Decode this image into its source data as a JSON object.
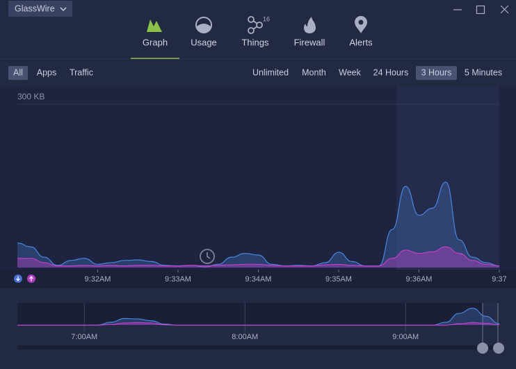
{
  "app_menu": "GlassWire",
  "nav": [
    {
      "label": "Graph",
      "selected": true
    },
    {
      "label": "Usage"
    },
    {
      "label": "Things",
      "badge": "16"
    },
    {
      "label": "Firewall"
    },
    {
      "label": "Alerts"
    }
  ],
  "filters": [
    {
      "label": "All",
      "selected": true
    },
    {
      "label": "Apps"
    },
    {
      "label": "Traffic"
    }
  ],
  "ranges": [
    {
      "label": "Unlimited"
    },
    {
      "label": "Month"
    },
    {
      "label": "Week"
    },
    {
      "label": "24 Hours"
    },
    {
      "label": "3 Hours",
      "selected": true
    },
    {
      "label": "5 Minutes"
    }
  ],
  "chart_data": [
    {
      "type": "area",
      "categories": [
        null,
        null,
        null,
        null,
        null,
        null,
        "9:32AM",
        null,
        null,
        null,
        null,
        null,
        "9:33AM",
        null,
        null,
        null,
        null,
        null,
        "9:34AM",
        null,
        null,
        null,
        null,
        null,
        "9:35AM",
        null,
        null,
        null,
        null,
        null,
        "9:36AM",
        null,
        null,
        null,
        null,
        null,
        "9:37"
      ],
      "series": [
        {
          "name": "download",
          "color": "#4a86e0",
          "values": [
            45,
            38,
            19,
            4,
            13,
            17,
            6,
            9,
            13,
            14,
            11,
            4,
            3,
            4,
            1,
            6,
            19,
            26,
            23,
            6,
            3,
            4,
            3,
            9,
            28,
            11,
            3,
            3,
            70,
            149,
            96,
            109,
            157,
            51,
            19,
            9,
            3
          ]
        },
        {
          "name": "upload",
          "color": "#c03fc8",
          "values": [
            17,
            17,
            9,
            3,
            3,
            4,
            3,
            4,
            3,
            4,
            4,
            3,
            3,
            4,
            3,
            4,
            5,
            6,
            6,
            4,
            3,
            3,
            3,
            5,
            6,
            4,
            3,
            3,
            17,
            32,
            26,
            29,
            38,
            26,
            13,
            6,
            3
          ]
        }
      ],
      "ylim": [
        0,
        300
      ],
      "yticks": [
        {
          "value": 300,
          "label": "300 KB"
        }
      ],
      "grid": true
    },
    {
      "type": "area",
      "categories": [
        null,
        null,
        null,
        null,
        null,
        "7:00AM",
        null,
        null,
        null,
        null,
        null,
        null,
        null,
        null,
        null,
        null,
        null,
        "8:00AM",
        null,
        null,
        null,
        null,
        null,
        null,
        null,
        null,
        null,
        null,
        null,
        "9:00AM",
        null,
        null,
        null,
        null,
        null,
        null,
        null
      ],
      "series": [
        {
          "name": "download",
          "color": "#4a86e0",
          "values": [
            0,
            0,
            0,
            0,
            0,
            0,
            3,
            40,
            90,
            85,
            60,
            15,
            0,
            0,
            0,
            0,
            0,
            0,
            0,
            0,
            0,
            0,
            0,
            0,
            0,
            0,
            0,
            0,
            0,
            0,
            0,
            0,
            40,
            160,
            230,
            120,
            20
          ]
        },
        {
          "name": "upload",
          "color": "#c03fc8",
          "values": [
            0,
            0,
            0,
            0,
            0,
            0,
            0,
            10,
            30,
            35,
            30,
            5,
            0,
            0,
            0,
            0,
            0,
            0,
            0,
            0,
            0,
            0,
            0,
            0,
            0,
            0,
            0,
            0,
            0,
            0,
            0,
            0,
            0,
            20,
            35,
            25,
            5
          ]
        }
      ],
      "ylim": [
        0,
        300
      ]
    }
  ]
}
